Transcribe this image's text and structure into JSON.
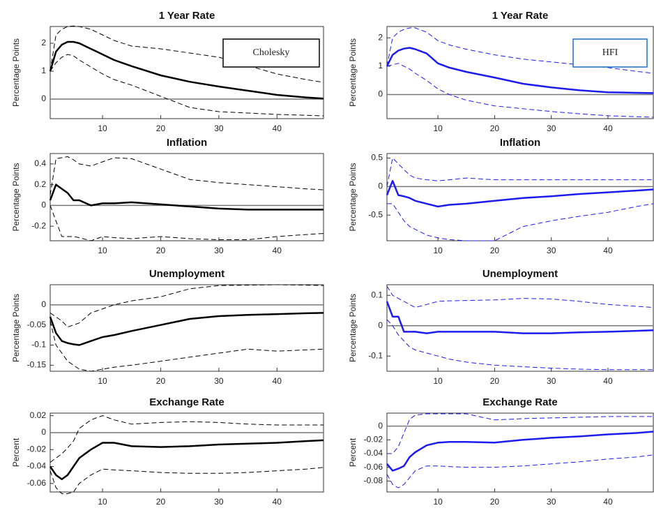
{
  "chart_data": [
    {
      "type": "line",
      "title": "1 Year Rate",
      "y_label": "Percentage Points",
      "annotation": "Cholesky",
      "annotation_color": "#000000",
      "x": [
        1,
        2,
        3,
        4,
        5,
        6,
        8,
        10,
        12,
        15,
        20,
        25,
        30,
        35,
        40,
        45,
        48
      ],
      "xlim": [
        1,
        48
      ],
      "xticks": [
        10,
        20,
        30,
        40
      ],
      "ylim": [
        -0.7,
        2.6
      ],
      "yticks": [
        0,
        1,
        2
      ],
      "hline": 0,
      "series": [
        {
          "color": "#000000",
          "style": "solid",
          "values": [
            1,
            1.7,
            1.95,
            2.05,
            2.05,
            2.0,
            1.8,
            1.6,
            1.4,
            1.18,
            0.85,
            0.62,
            0.45,
            0.3,
            0.15,
            0.06,
            0.02
          ]
        },
        {
          "color": "#000000",
          "style": "dashed",
          "values": [
            1,
            2.3,
            2.5,
            2.6,
            2.62,
            2.6,
            2.5,
            2.3,
            2.1,
            1.9,
            1.8,
            1.65,
            1.5,
            1.2,
            0.9,
            0.7,
            0.6
          ]
        },
        {
          "color": "#000000",
          "style": "dashed",
          "values": [
            1,
            1.3,
            1.5,
            1.6,
            1.55,
            1.4,
            1.15,
            0.9,
            0.7,
            0.5,
            0.1,
            -0.3,
            -0.45,
            -0.5,
            -0.55,
            -0.58,
            -0.6
          ]
        }
      ]
    },
    {
      "type": "line",
      "title": "1 Year Rate",
      "y_label": "Percentage Points",
      "annotation": "HFI",
      "annotation_color": "#1a6fd1",
      "x": [
        1,
        2,
        3,
        4,
        5,
        6,
        8,
        10,
        12,
        15,
        20,
        25,
        30,
        35,
        40,
        45,
        48
      ],
      "xlim": [
        1,
        48
      ],
      "xticks": [
        10,
        20,
        30,
        40
      ],
      "ylim": [
        -0.85,
        2.4
      ],
      "yticks": [
        0,
        1,
        2
      ],
      "hline": 0,
      "series": [
        {
          "color": "#1c1cf0",
          "style": "solid",
          "values": [
            1,
            1.4,
            1.55,
            1.62,
            1.65,
            1.6,
            1.45,
            1.1,
            0.95,
            0.8,
            0.6,
            0.38,
            0.25,
            0.15,
            0.08,
            0.06,
            0.05
          ]
        },
        {
          "color": "#1c1cf0",
          "style": "dashed",
          "values": [
            1,
            2.0,
            2.2,
            2.3,
            2.35,
            2.35,
            2.2,
            1.9,
            1.75,
            1.6,
            1.4,
            1.25,
            1.15,
            1.05,
            0.95,
            0.82,
            0.75
          ]
        },
        {
          "color": "#1c1cf0",
          "style": "dashed",
          "values": [
            1,
            1.05,
            1.1,
            1.0,
            0.9,
            0.75,
            0.5,
            0.2,
            0.0,
            -0.2,
            -0.4,
            -0.5,
            -0.6,
            -0.68,
            -0.75,
            -0.78,
            -0.8
          ]
        }
      ]
    },
    {
      "type": "line",
      "title": "Inflation",
      "y_label": "Percentage Points",
      "x": [
        1,
        2,
        3,
        4,
        5,
        6,
        8,
        10,
        12,
        15,
        20,
        25,
        30,
        35,
        40,
        45,
        48
      ],
      "xlim": [
        1,
        48
      ],
      "xticks": [
        10,
        20,
        30,
        40
      ],
      "ylim": [
        -0.34,
        0.5
      ],
      "yticks": [
        -0.2,
        0,
        0.2,
        0.4
      ],
      "hline": 0,
      "series": [
        {
          "color": "#000000",
          "style": "solid",
          "values": [
            0.05,
            0.2,
            0.16,
            0.12,
            0.05,
            0.05,
            0,
            0.02,
            0.02,
            0.03,
            0.01,
            -0.01,
            -0.03,
            -0.04,
            -0.04,
            -0.04,
            -0.04
          ]
        },
        {
          "color": "#000000",
          "style": "dashed",
          "values": [
            0.1,
            0.45,
            0.46,
            0.47,
            0.44,
            0.4,
            0.38,
            0.42,
            0.46,
            0.45,
            0.35,
            0.25,
            0.22,
            0.2,
            0.18,
            0.16,
            0.15
          ]
        },
        {
          "color": "#000000",
          "style": "dashed",
          "values": [
            0,
            -0.15,
            -0.3,
            -0.3,
            -0.3,
            -0.31,
            -0.34,
            -0.3,
            -0.31,
            -0.32,
            -0.3,
            -0.32,
            -0.33,
            -0.33,
            -0.3,
            -0.28,
            -0.27
          ]
        }
      ]
    },
    {
      "type": "line",
      "title": "Inflation",
      "y_label": "Percentage Points",
      "x": [
        1,
        2,
        3,
        4,
        5,
        6,
        8,
        10,
        12,
        15,
        20,
        25,
        30,
        35,
        40,
        45,
        48
      ],
      "xlim": [
        1,
        48
      ],
      "xticks": [
        10,
        20,
        30,
        40
      ],
      "ylim": [
        -0.95,
        0.58
      ],
      "yticks": [
        -0.5,
        0,
        0.5
      ],
      "hline": 0,
      "series": [
        {
          "color": "#1c1cf0",
          "style": "solid",
          "values": [
            -0.15,
            0.1,
            -0.15,
            -0.17,
            -0.2,
            -0.25,
            -0.3,
            -0.35,
            -0.32,
            -0.3,
            -0.25,
            -0.2,
            -0.17,
            -0.13,
            -0.1,
            -0.07,
            -0.05
          ]
        },
        {
          "color": "#1c1cf0",
          "style": "dashed",
          "values": [
            0,
            0.5,
            0.4,
            0.3,
            0.2,
            0.15,
            0.12,
            0.1,
            0.12,
            0.15,
            0.12,
            0.12,
            0.12,
            0.12,
            0.12,
            0.12,
            0.12
          ]
        },
        {
          "color": "#1c1cf0",
          "style": "dashed",
          "values": [
            -0.3,
            -0.3,
            -0.45,
            -0.6,
            -0.7,
            -0.75,
            -0.85,
            -0.9,
            -0.93,
            -0.95,
            -0.95,
            -0.7,
            -0.6,
            -0.52,
            -0.45,
            -0.35,
            -0.3
          ]
        }
      ]
    },
    {
      "type": "line",
      "title": "Unemployment",
      "y_label": "Percentage Points",
      "x": [
        1,
        2,
        3,
        4,
        5,
        6,
        8,
        10,
        12,
        15,
        20,
        25,
        30,
        35,
        40,
        45,
        48
      ],
      "xlim": [
        1,
        48
      ],
      "xticks": [
        10,
        20,
        30,
        40
      ],
      "ylim": [
        -0.165,
        0.05
      ],
      "yticks": [
        -0.15,
        -0.1,
        -0.05,
        0
      ],
      "hline": 0,
      "series": [
        {
          "color": "#000000",
          "style": "solid",
          "values": [
            -0.03,
            -0.07,
            -0.09,
            -0.095,
            -0.098,
            -0.1,
            -0.09,
            -0.08,
            -0.075,
            -0.065,
            -0.05,
            -0.035,
            -0.028,
            -0.025,
            -0.023,
            -0.021,
            -0.02
          ]
        },
        {
          "color": "#000000",
          "style": "dashed",
          "values": [
            -0.02,
            -0.03,
            -0.04,
            -0.055,
            -0.05,
            -0.045,
            -0.02,
            -0.01,
            0,
            0.01,
            0.02,
            0.04,
            0.048,
            0.049,
            0.05,
            0.049,
            0.048
          ]
        },
        {
          "color": "#000000",
          "style": "dashed",
          "values": [
            -0.04,
            -0.1,
            -0.12,
            -0.14,
            -0.15,
            -0.16,
            -0.165,
            -0.16,
            -0.155,
            -0.15,
            -0.14,
            -0.13,
            -0.12,
            -0.11,
            -0.115,
            -0.112,
            -0.11
          ]
        }
      ]
    },
    {
      "type": "line",
      "title": "Unemployment",
      "y_label": "Percentage Points",
      "x": [
        1,
        2,
        3,
        4,
        5,
        6,
        8,
        10,
        12,
        15,
        20,
        25,
        30,
        35,
        40,
        45,
        48
      ],
      "xlim": [
        1,
        48
      ],
      "xticks": [
        10,
        20,
        30,
        40
      ],
      "ylim": [
        -0.15,
        0.135
      ],
      "yticks": [
        -0.1,
        0,
        0.1
      ],
      "hline": 0,
      "series": [
        {
          "color": "#1c1cf0",
          "style": "solid",
          "values": [
            0.08,
            0.03,
            0.03,
            -0.02,
            -0.02,
            -0.02,
            -0.025,
            -0.02,
            -0.02,
            -0.02,
            -0.02,
            -0.025,
            -0.025,
            -0.022,
            -0.02,
            -0.017,
            -0.015
          ]
        },
        {
          "color": "#1c1cf0",
          "style": "dashed",
          "values": [
            0.13,
            0.1,
            0.09,
            0.08,
            0.07,
            0.06,
            0.07,
            0.08,
            0.082,
            0.083,
            0.085,
            0.09,
            0.088,
            0.08,
            0.07,
            0.064,
            0.06
          ]
        },
        {
          "color": "#1c1cf0",
          "style": "dashed",
          "values": [
            0.02,
            0,
            -0.03,
            -0.05,
            -0.07,
            -0.08,
            -0.09,
            -0.1,
            -0.11,
            -0.12,
            -0.13,
            -0.135,
            -0.14,
            -0.143,
            -0.145,
            -0.145,
            -0.145
          ]
        }
      ]
    },
    {
      "type": "line",
      "title": "Exchange Rate",
      "y_label": "Percent",
      "x": [
        1,
        2,
        3,
        4,
        5,
        6,
        8,
        10,
        12,
        15,
        20,
        25,
        30,
        35,
        40,
        45,
        48
      ],
      "xlim": [
        1,
        48
      ],
      "xticks": [
        10,
        20,
        30,
        40
      ],
      "ylim": [
        -0.07,
        0.023
      ],
      "yticks": [
        -0.06,
        -0.04,
        -0.02,
        0,
        0.02
      ],
      "hline": 0,
      "series": [
        {
          "color": "#000000",
          "style": "solid",
          "values": [
            -0.04,
            -0.05,
            -0.055,
            -0.05,
            -0.04,
            -0.03,
            -0.02,
            -0.012,
            -0.012,
            -0.016,
            -0.017,
            -0.016,
            -0.014,
            -0.013,
            -0.012,
            -0.01,
            -0.009
          ]
        },
        {
          "color": "#000000",
          "style": "dashed",
          "values": [
            -0.035,
            -0.03,
            -0.025,
            -0.018,
            -0.01,
            0.005,
            0.015,
            0.02,
            0.015,
            0.01,
            0.012,
            0.013,
            0.012,
            0.01,
            0.009,
            0.009,
            0.009
          ]
        },
        {
          "color": "#000000",
          "style": "dashed",
          "values": [
            -0.045,
            -0.065,
            -0.072,
            -0.072,
            -0.07,
            -0.06,
            -0.05,
            -0.043,
            -0.044,
            -0.045,
            -0.047,
            -0.048,
            -0.048,
            -0.047,
            -0.045,
            -0.043,
            -0.041
          ]
        }
      ]
    },
    {
      "type": "line",
      "title": "Exchange Rate",
      "y_label": "Percent",
      "x": [
        1,
        2,
        3,
        4,
        5,
        6,
        8,
        10,
        12,
        15,
        20,
        25,
        30,
        35,
        40,
        45,
        48
      ],
      "xlim": [
        1,
        48
      ],
      "xticks": [
        10,
        20,
        30,
        40
      ],
      "ylim": [
        -0.096,
        0.019
      ],
      "yticks": [
        -0.08,
        -0.06,
        -0.04,
        -0.02,
        0
      ],
      "hline": 0,
      "series": [
        {
          "color": "#1c1cf0",
          "style": "solid",
          "values": [
            -0.055,
            -0.065,
            -0.062,
            -0.058,
            -0.045,
            -0.038,
            -0.028,
            -0.024,
            -0.023,
            -0.023,
            -0.024,
            -0.02,
            -0.017,
            -0.015,
            -0.012,
            -0.01,
            -0.008
          ]
        },
        {
          "color": "#1c1cf0",
          "style": "dashed",
          "values": [
            -0.04,
            -0.04,
            -0.03,
            -0.01,
            0.01,
            0.016,
            0.018,
            0.018,
            0.018,
            0.018,
            0.009,
            0.011,
            0.012,
            0.013,
            0.014,
            0.014,
            0.014
          ]
        },
        {
          "color": "#1c1cf0",
          "style": "dashed",
          "values": [
            -0.07,
            -0.085,
            -0.09,
            -0.085,
            -0.075,
            -0.065,
            -0.058,
            -0.058,
            -0.059,
            -0.06,
            -0.06,
            -0.058,
            -0.055,
            -0.052,
            -0.048,
            -0.045,
            -0.042
          ]
        }
      ]
    }
  ]
}
